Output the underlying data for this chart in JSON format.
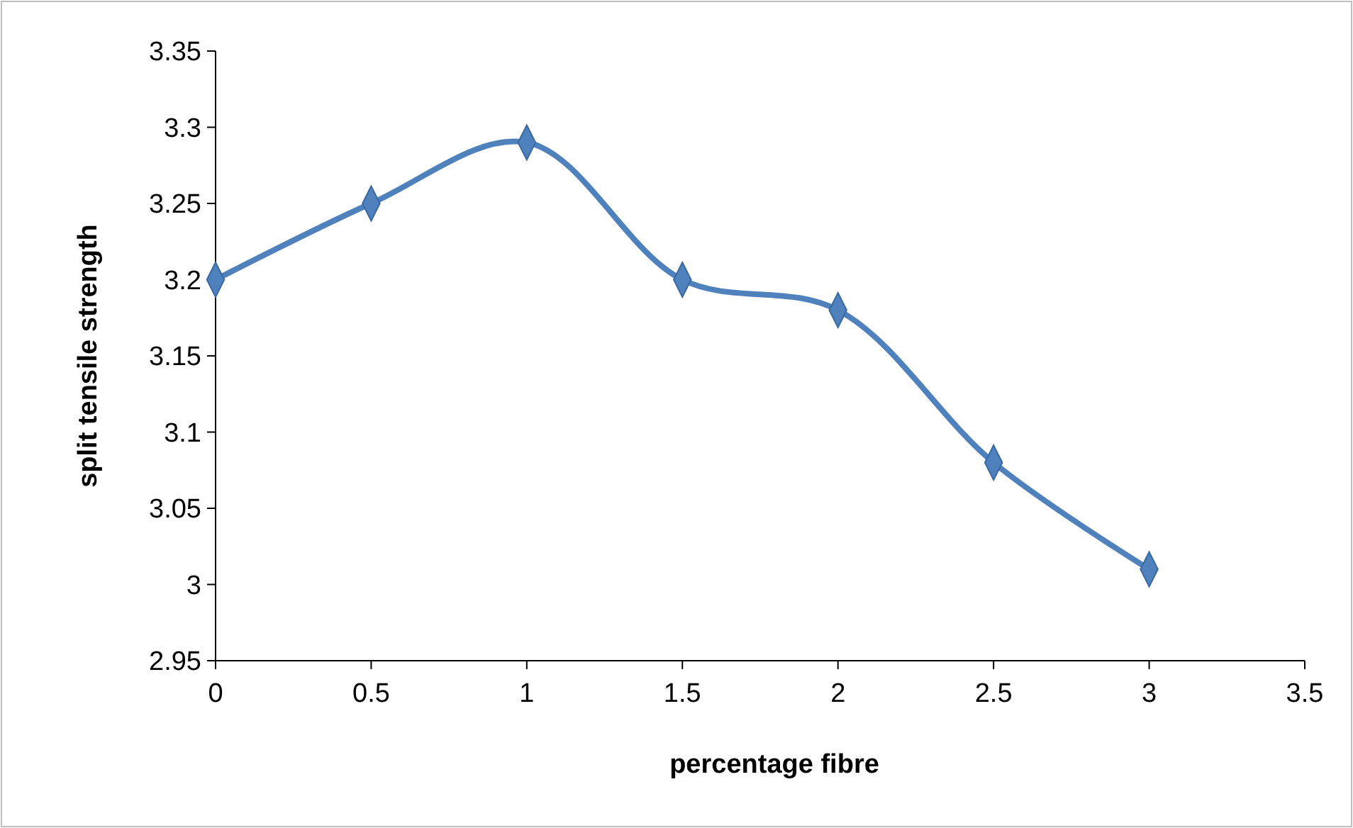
{
  "chart_data": {
    "type": "line",
    "xlabel": "percentage fibre",
    "ylabel": "split tensile strength",
    "x": [
      0,
      0.5,
      1,
      1.5,
      2,
      2.5,
      3
    ],
    "series": [
      {
        "color": "#4f81bd",
        "values": [
          3.2,
          3.25,
          3.29,
          3.2,
          3.18,
          3.08,
          3.01
        ]
      }
    ],
    "xlim": [
      0,
      3.5
    ],
    "xticks": [
      0,
      0.5,
      1,
      1.5,
      2,
      2.5,
      3,
      3.5
    ],
    "ylim": [
      2.95,
      3.35
    ],
    "yticks": [
      2.95,
      3,
      3.05,
      3.1,
      3.15,
      3.2,
      3.25,
      3.3,
      3.35
    ],
    "grid": false,
    "marker": "diamond",
    "line_style": "solid"
  }
}
